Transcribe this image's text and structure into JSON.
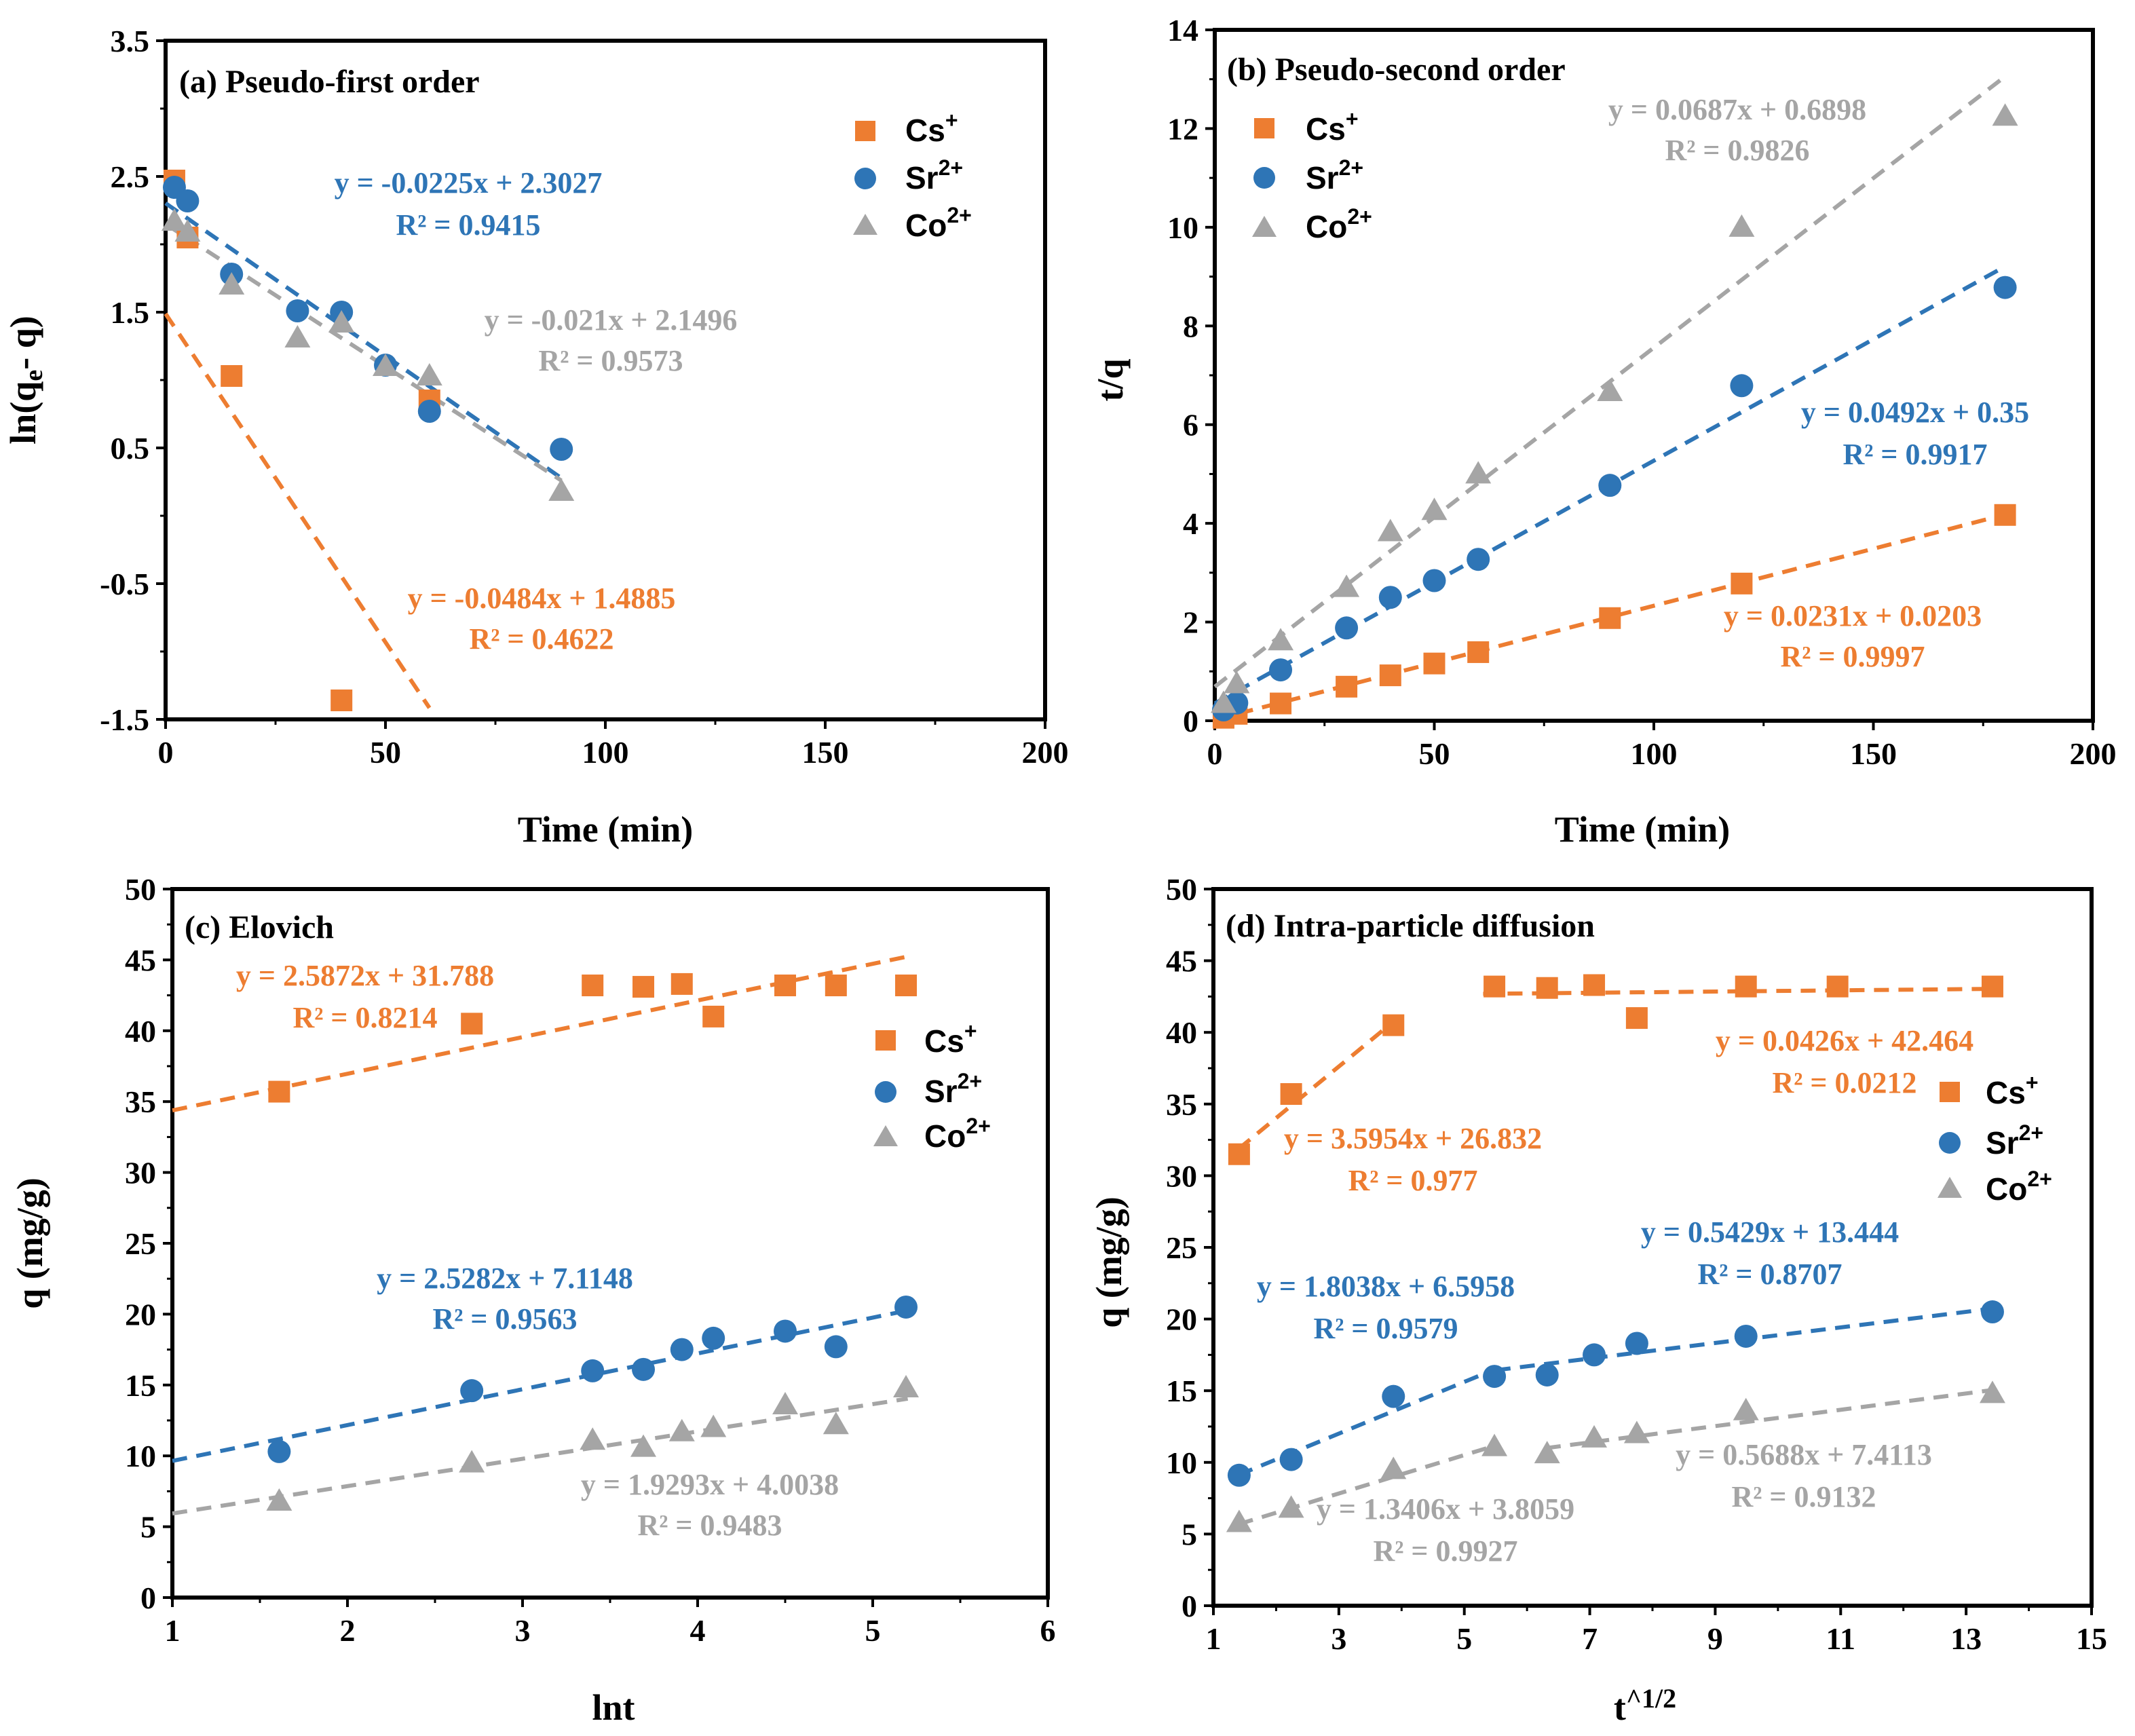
{
  "figure": {
    "colors": {
      "Cs": "#ED7D31",
      "Sr": "#2E75B6",
      "Co": "#A5A5A5"
    },
    "marker_shapes": {
      "Cs": "square",
      "Sr": "circle",
      "Co": "triangle"
    }
  },
  "chart_data": [
    {
      "id": "a",
      "type": "scatter",
      "title": "(a) Pseudo-first order",
      "xlabel": "Time (min)",
      "ylabel": "ln(q_e- q)",
      "ylabel_parts": {
        "pre": "ln(q",
        "sub": "e",
        "post": "- q)"
      },
      "xlim": [
        0,
        200
      ],
      "ylim": [
        -1.5,
        3.5
      ],
      "xticks": [
        0,
        50,
        100,
        150,
        200
      ],
      "yticks": [
        -1.5,
        -0.5,
        0.5,
        1.5,
        2.5,
        3.5
      ],
      "legend": [
        {
          "key": "Cs",
          "base": "Cs",
          "sup": "+"
        },
        {
          "key": "Sr",
          "base": "Sr",
          "sup": "2+"
        },
        {
          "key": "Co",
          "base": "Co",
          "sup": "2+"
        }
      ],
      "series": [
        {
          "key": "Cs",
          "x": [
            2,
            5,
            15,
            40,
            60
          ],
          "y": [
            2.47,
            2.05,
            1.03,
            -1.36,
            0.85
          ],
          "fit": {
            "slope": -0.0484,
            "intercept": 1.4885,
            "x_range": [
              0,
              60
            ]
          },
          "equation": "y = -0.0484x + 1.4885",
          "r2": "R² = 0.4622"
        },
        {
          "key": "Sr",
          "x": [
            2,
            5,
            15,
            30,
            40,
            50,
            60,
            90
          ],
          "y": [
            2.42,
            2.32,
            1.78,
            1.51,
            1.5,
            1.11,
            0.77,
            0.49
          ],
          "fit": {
            "slope": -0.0225,
            "intercept": 2.3027,
            "x_range": [
              0,
              90
            ]
          },
          "equation": "y = -0.0225x + 2.3027",
          "r2": "R² = 0.9415"
        },
        {
          "key": "Co",
          "x": [
            2,
            5,
            15,
            30,
            40,
            50,
            60,
            90
          ],
          "y": [
            2.17,
            2.09,
            1.7,
            1.31,
            1.42,
            1.1,
            1.03,
            0.18
          ],
          "fit": {
            "slope": -0.021,
            "intercept": 2.1496,
            "x_range": [
              0,
              90
            ]
          },
          "equation": "y = -0.021x + 2.1496",
          "r2": "R² = 0.9573"
        }
      ]
    },
    {
      "id": "b",
      "type": "scatter",
      "title": "(b) Pseudo-second order",
      "xlabel": "Time (min)",
      "ylabel": "t/q",
      "xlim": [
        0,
        200
      ],
      "ylim": [
        0,
        14
      ],
      "xticks": [
        0,
        50,
        100,
        150,
        200
      ],
      "yticks": [
        0,
        2,
        4,
        6,
        8,
        10,
        12,
        14
      ],
      "legend": [
        {
          "key": "Cs",
          "base": "Cs",
          "sup": "+"
        },
        {
          "key": "Sr",
          "base": "Sr",
          "sup": "2+"
        },
        {
          "key": "Co",
          "base": "Co",
          "sup": "2+"
        }
      ],
      "series": [
        {
          "key": "Cs",
          "x": [
            2,
            5,
            15,
            30,
            40,
            50,
            60,
            90,
            120,
            180
          ],
          "y": [
            0.06,
            0.14,
            0.35,
            0.69,
            0.92,
            1.16,
            1.39,
            2.08,
            2.78,
            4.17
          ],
          "fit": {
            "slope": 0.0231,
            "intercept": 0.0203,
            "x_range": [
              0,
              180
            ]
          },
          "equation": "y = 0.0231x + 0.0203",
          "r2": "R² = 0.9997"
        },
        {
          "key": "Sr",
          "x": [
            2,
            5,
            15,
            30,
            40,
            50,
            60,
            90,
            120,
            180
          ],
          "y": [
            0.22,
            0.36,
            1.03,
            1.88,
            2.5,
            2.84,
            3.27,
            4.77,
            6.79,
            8.78
          ],
          "fit": {
            "slope": 0.0492,
            "intercept": 0.35,
            "x_range": [
              0,
              180
            ]
          },
          "equation": "y = 0.0492x + 0.35",
          "r2": "R² = 0.9917"
        },
        {
          "key": "Co",
          "x": [
            2,
            5,
            15,
            30,
            40,
            50,
            60,
            90,
            120,
            180
          ],
          "y": [
            0.35,
            0.75,
            1.62,
            2.7,
            3.83,
            4.26,
            5.0,
            6.67,
            10.0,
            12.25
          ],
          "fit": {
            "slope": 0.0687,
            "intercept": 0.6898,
            "x_range": [
              0,
              180
            ]
          },
          "equation": "y = 0.0687x + 0.6898",
          "r2": "R² = 0.9826"
        }
      ]
    },
    {
      "id": "c",
      "type": "scatter",
      "title": "(c) Elovich",
      "xlabel": "lnt",
      "ylabel": "q (mg/g)",
      "xlim": [
        1,
        6
      ],
      "ylim": [
        0,
        50
      ],
      "xticks": [
        1,
        2,
        3,
        4,
        5,
        6
      ],
      "yticks": [
        0,
        5,
        10,
        15,
        20,
        25,
        30,
        35,
        40,
        45,
        50
      ],
      "legend": [
        {
          "key": "Cs",
          "base": "Cs",
          "sup": "+"
        },
        {
          "key": "Sr",
          "base": "Sr",
          "sup": "2+"
        },
        {
          "key": "Co",
          "base": "Co",
          "sup": "2+"
        }
      ],
      "series": [
        {
          "key": "Cs",
          "x": [
            1.61,
            2.71,
            3.4,
            3.69,
            3.91,
            4.09,
            4.5,
            4.79,
            5.19
          ],
          "y": [
            35.7,
            40.5,
            43.2,
            43.1,
            43.3,
            41.0,
            43.2,
            43.2,
            43.2
          ],
          "fit": {
            "slope": 2.5872,
            "intercept": 31.788,
            "x_range": [
              1,
              5.2
            ]
          },
          "equation": "y = 2.5872x + 31.788",
          "r2": "R² = 0.8214"
        },
        {
          "key": "Sr",
          "x": [
            1.61,
            2.71,
            3.4,
            3.69,
            3.91,
            4.09,
            4.5,
            4.79,
            5.19
          ],
          "y": [
            10.3,
            14.6,
            16.0,
            16.1,
            17.5,
            18.3,
            18.8,
            17.7,
            20.5
          ],
          "fit": {
            "slope": 2.5282,
            "intercept": 7.1148,
            "x_range": [
              1,
              5.2
            ]
          },
          "equation": "y = 2.5282x + 7.1148",
          "r2": "R² = 0.9563"
        },
        {
          "key": "Co",
          "x": [
            1.61,
            2.71,
            3.4,
            3.69,
            3.91,
            4.09,
            4.5,
            4.79,
            5.19
          ],
          "y": [
            6.8,
            9.5,
            11.1,
            10.6,
            11.7,
            12.0,
            13.6,
            12.2,
            14.8
          ],
          "fit": {
            "slope": 1.9293,
            "intercept": 4.0038,
            "x_range": [
              1,
              5.2
            ]
          },
          "equation": "y = 1.9293x + 4.0038",
          "r2": "R² = 0.9483"
        }
      ]
    },
    {
      "id": "d",
      "type": "scatter",
      "title": "(d) Intra-particle diffusion",
      "xlabel": "t^1/2",
      "xlabel_parts": {
        "base": "t",
        "sup": "^1/2"
      },
      "ylabel": "q (mg/g)",
      "xlim": [
        1,
        15
      ],
      "ylim": [
        0,
        50
      ],
      "xticks": [
        1,
        3,
        5,
        7,
        9,
        11,
        13,
        15
      ],
      "yticks": [
        0,
        5,
        10,
        15,
        20,
        25,
        30,
        35,
        40,
        45,
        50
      ],
      "legend": [
        {
          "key": "Cs",
          "base": "Cs",
          "sup": "+"
        },
        {
          "key": "Sr",
          "base": "Sr",
          "sup": "2+"
        },
        {
          "key": "Co",
          "base": "Co",
          "sup": "2+"
        }
      ],
      "series": [
        {
          "key": "Cs",
          "x": [
            1.41,
            2.24,
            3.87,
            5.48,
            6.32,
            7.07,
            7.75,
            9.49,
            10.95,
            13.42
          ],
          "y": [
            31.5,
            35.7,
            40.5,
            43.2,
            43.1,
            43.3,
            41.0,
            43.2,
            43.2,
            43.2
          ],
          "fits": [
            {
              "slope": 3.5954,
              "intercept": 26.832,
              "x_range": [
                1.4,
                3.9
              ],
              "equation": "y = 3.5954x + 26.832",
              "r2": "R² = 0.977"
            },
            {
              "slope": 0.0426,
              "intercept": 42.464,
              "x_range": [
                5.3,
                13.4
              ],
              "equation": "y = 0.0426x + 42.464",
              "r2": "R² = 0.0212"
            }
          ]
        },
        {
          "key": "Sr",
          "x": [
            1.41,
            2.24,
            3.87,
            5.48,
            6.32,
            7.07,
            7.75,
            9.49,
            13.42
          ],
          "y": [
            9.1,
            10.2,
            14.6,
            16.0,
            16.1,
            17.5,
            18.3,
            18.8,
            20.5
          ],
          "fits": [
            {
              "slope": 1.8038,
              "intercept": 6.5958,
              "x_range": [
                1.4,
                5.5
              ],
              "equation": "y = 1.8038x + 6.5958",
              "r2": "R² = 0.9579"
            },
            {
              "slope": 0.5429,
              "intercept": 13.444,
              "x_range": [
                5.5,
                13.4
              ],
              "equation": "y = 0.5429x + 13.444",
              "r2": "R² = 0.8707"
            }
          ]
        },
        {
          "key": "Co",
          "x": [
            1.41,
            2.24,
            3.87,
            5.48,
            6.32,
            7.07,
            7.75,
            9.49,
            13.42
          ],
          "y": [
            5.8,
            6.8,
            9.5,
            11.1,
            10.6,
            11.7,
            12.0,
            13.6,
            14.8
          ],
          "fits": [
            {
              "slope": 1.3406,
              "intercept": 3.8059,
              "x_range": [
                1.4,
                5.5
              ],
              "equation": "y = 1.3406x + 3.8059",
              "r2": "R² = 0.9927"
            },
            {
              "slope": 0.5688,
              "intercept": 7.4113,
              "x_range": [
                6.3,
                13.4
              ],
              "equation": "y = 0.5688x + 7.4113",
              "r2": "R² = 0.9132"
            }
          ]
        }
      ]
    }
  ]
}
